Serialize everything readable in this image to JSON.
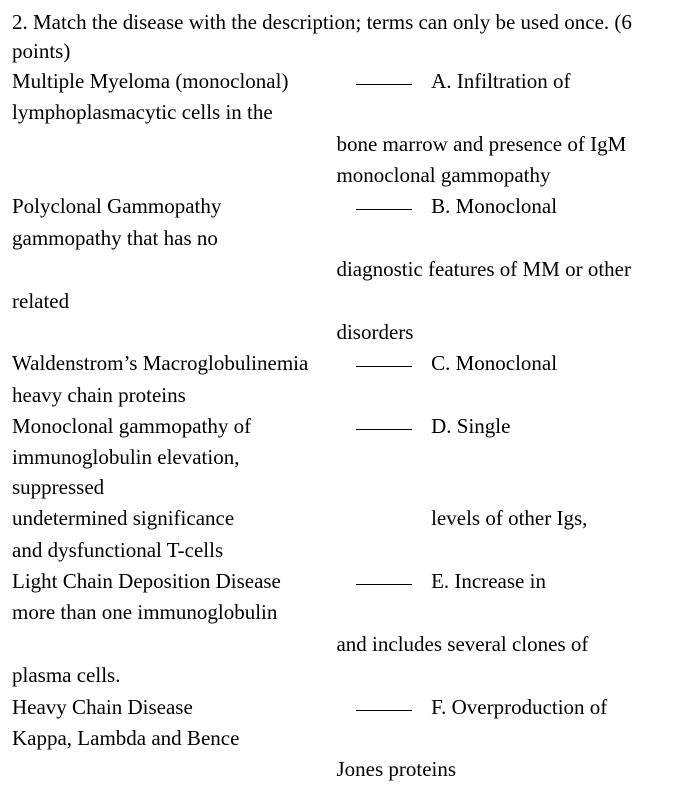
{
  "question": {
    "number": "2.",
    "prompt": "Match the disease with the description; terms can only be used once. (6 points)"
  },
  "rows": {
    "r1_left": "Multiple Myeloma (monoclonal)",
    "r1_right": "A. Infiltration of",
    "r2_left": "lymphoplasmacytic cells in the",
    "r3_ind": "bone marrow and presence of IgM",
    "r4_ind": "monoclonal gammopathy",
    "r5_left": "Polyclonal Gammopathy",
    "r5_right": "B. Monoclonal",
    "r6_left": "gammopathy that has no",
    "r7_ind": "diagnostic features of MM or other",
    "r8_left": "related",
    "r9_ind": "disorders",
    "r10_left": "Waldenstrom’s Macroglobulinemia",
    "r10_right": "C. Monoclonal",
    "r11_left": "heavy chain proteins",
    "r12_left": "Monoclonal gammopathy of",
    "r12_right": "D. Single",
    "r13_left": "immunoglobulin elevation, suppressed",
    "r14_left": "undetermined significance",
    "r14_right": "levels of other Igs,",
    "r15_left": "and dysfunctional T-cells",
    "r16_left": "Light Chain Deposition Disease",
    "r16_right": "E. Increase in",
    "r17_left": "more than one immunoglobulin",
    "r18_ind": "and includes several clones of",
    "r19_left": "plasma cells.",
    "r20_left": "Heavy Chain Disease",
    "r20_right": "F.  Overproduction of",
    "r21_left": "Kappa, Lambda and Bence",
    "r22_ind": "Jones proteins"
  }
}
